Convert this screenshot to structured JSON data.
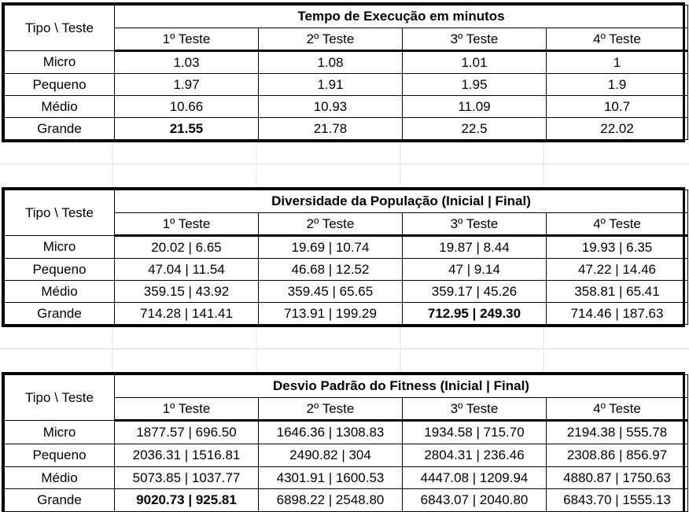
{
  "tables": [
    {
      "corner": "Tipo \\ Teste",
      "title": "Tempo de Execução em minutos",
      "columns": [
        "1º Teste",
        "2º Teste",
        "3º Teste",
        "4º Teste"
      ],
      "rows": [
        {
          "label": "Micro",
          "cells": [
            "1.03",
            "1.08",
            "1.01",
            "1"
          ]
        },
        {
          "label": "Pequeno",
          "cells": [
            "1.97",
            "1.91",
            "1.95",
            "1.9"
          ]
        },
        {
          "label": "Médio",
          "cells": [
            "10.66",
            "10.93",
            "11.09",
            "10.7"
          ]
        },
        {
          "label": "Grande",
          "cells": [
            "21.55",
            "21.78",
            "22.5",
            "22.02"
          ]
        }
      ],
      "bold": [
        [
          3,
          0
        ]
      ]
    },
    {
      "corner": "Tipo \\ Teste",
      "title": "Diversidade da População (Inicial | Final)",
      "columns": [
        "1º Teste",
        "2º Teste",
        "3º Teste",
        "4º Teste"
      ],
      "rows": [
        {
          "label": "Micro",
          "cells": [
            "20.02 | 6.65",
            "19.69 | 10.74",
            "19.87 | 8.44",
            "19.93 | 6.35"
          ]
        },
        {
          "label": "Pequeno",
          "cells": [
            "47.04 | 11.54",
            "46.68 | 12.52",
            "47 | 9.14",
            "47.22 | 14.46"
          ]
        },
        {
          "label": "Médio",
          "cells": [
            "359.15 | 43.92",
            "359.45 | 65.65",
            "359.17 | 45.26",
            "358.81 | 65.41"
          ]
        },
        {
          "label": "Grande",
          "cells": [
            "714.28 | 141.41",
            "713.91 | 199.29",
            "712.95 | 249.30",
            "714.46 | 187.63"
          ]
        }
      ],
      "bold": [
        [
          3,
          2
        ]
      ]
    },
    {
      "corner": "Tipo \\ Teste",
      "title": "Desvio Padrão do Fitness (Inicial | Final)",
      "columns": [
        "1º Teste",
        "2º Teste",
        "3º Teste",
        "4º Teste"
      ],
      "rows": [
        {
          "label": "Micro",
          "cells": [
            "1877.57 | 696.50",
            "1646.36 | 1308.83",
            "1934.58 | 715.70",
            "2194.38 | 555.78"
          ]
        },
        {
          "label": "Pequeno",
          "cells": [
            "2036.31 | 1516.81",
            "2490.82 | 304",
            "2804.31 | 236.46",
            "2308.86 | 856.97"
          ]
        },
        {
          "label": "Médio",
          "cells": [
            "5073.85 | 1037.77",
            "4301.91 | 1600.53",
            "4447.08 | 1209.94",
            "4880.87 | 1750.63"
          ]
        },
        {
          "label": "Grande",
          "cells": [
            "9020.73 | 925.81",
            "6898.22 | 2548.80",
            "6843.07 | 2040.80",
            "6843.70 | 1555.13"
          ]
        }
      ],
      "bold": [
        [
          3,
          0
        ]
      ]
    }
  ]
}
